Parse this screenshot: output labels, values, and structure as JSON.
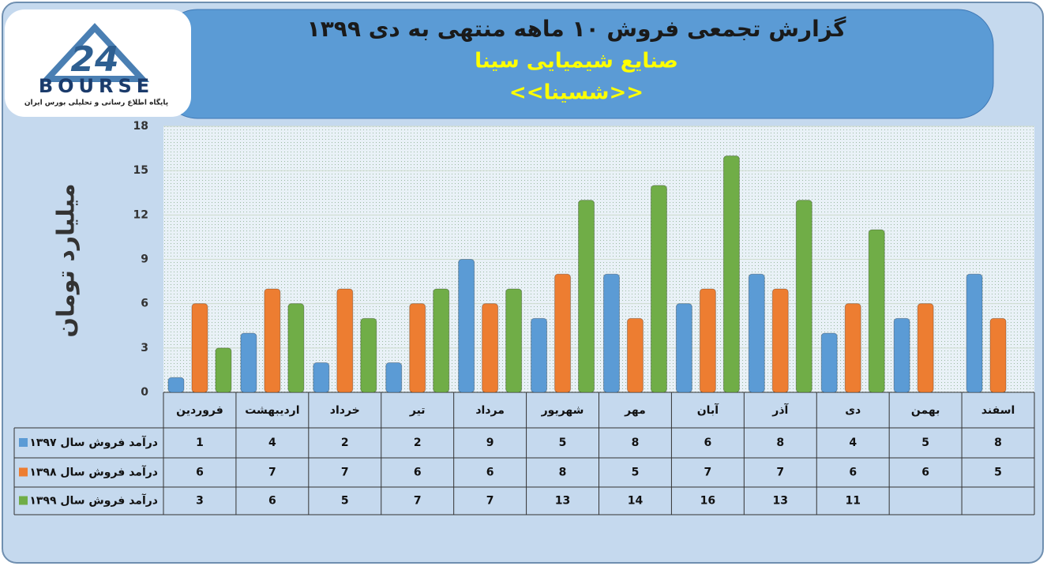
{
  "logo": {
    "number": "24",
    "name": "BOURSE",
    "tagline": "پایگاه اطلاع رسانی و تحلیلی بورس ایران"
  },
  "chart_data": {
    "type": "bar",
    "title": "گزارش تجمعی فروش ۱۰ ماهه منتهی به دی ۱۳۹۹",
    "subtitle": "صنایع شیمیایی سینا",
    "symbol": "<<شسینا>>",
    "y_label": "میلیارد تومان",
    "categories": [
      "فروردین",
      "اردیبهشت",
      "خرداد",
      "تیر",
      "مرداد",
      "شهریور",
      "مهر",
      "آبان",
      "آذر",
      "دی",
      "بهمن",
      "اسفند"
    ],
    "series": [
      {
        "name": "درآمد فروش سال ۱۳۹۷",
        "color": "#5b9bd5",
        "values": [
          1,
          4,
          2,
          2,
          9,
          5,
          8,
          6,
          8,
          4,
          5,
          8
        ]
      },
      {
        "name": "درآمد فروش سال ۱۳۹۸",
        "color": "#ed7d31",
        "values": [
          6,
          7,
          7,
          6,
          6,
          8,
          5,
          7,
          7,
          6,
          6,
          5
        ]
      },
      {
        "name": "درآمد فروش سال ۱۳۹۹",
        "color": "#70ad47",
        "values": [
          3,
          6,
          5,
          7,
          7,
          13,
          14,
          16,
          13,
          11,
          null,
          null
        ]
      }
    ],
    "ylim": [
      0,
      18
    ],
    "yticks": [
      0,
      3,
      6,
      9,
      12,
      15,
      18
    ],
    "grid": true
  }
}
